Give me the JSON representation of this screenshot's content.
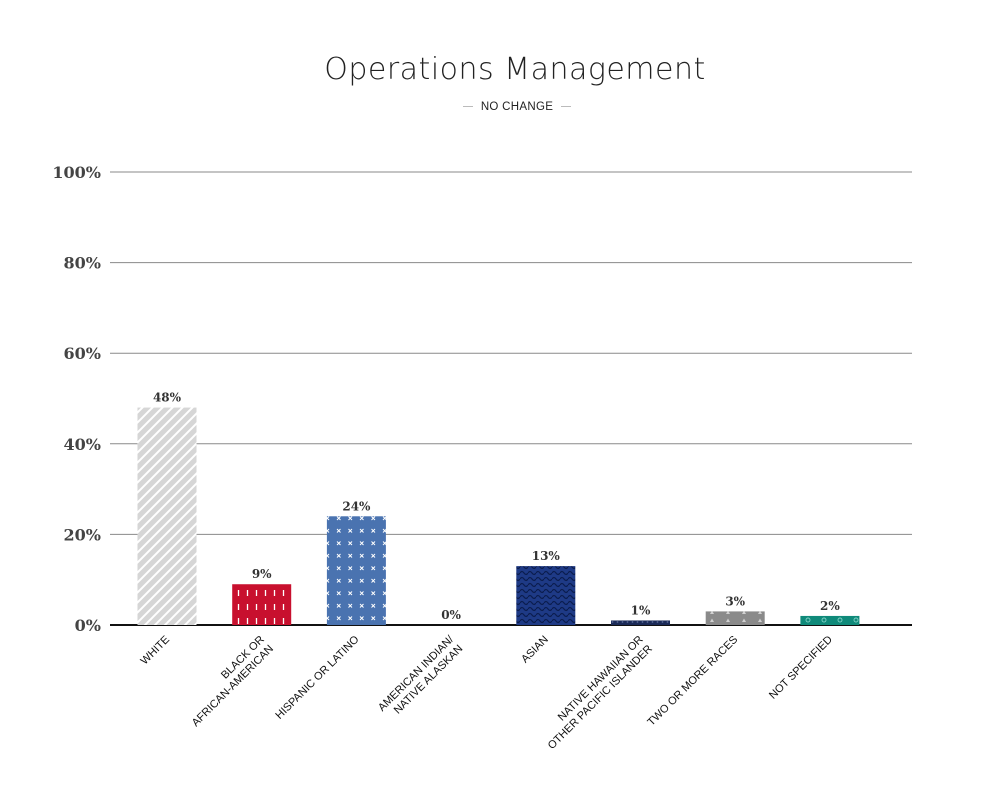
{
  "chart_data": {
    "type": "bar",
    "title": "Operations Management",
    "subtitle": "NO CHANGE",
    "categories": [
      [
        "WHITE"
      ],
      [
        "BLACK OR",
        "AFRICAN-AMERICAN"
      ],
      [
        "HISPANIC OR LATINO"
      ],
      [
        "AMERICAN INDIAN/",
        "NATIVE ALASKAN"
      ],
      [
        "ASIAN"
      ],
      [
        "NATIVE HAWAIIAN OR",
        "OTHER PACIFIC ISLANDER"
      ],
      [
        "TWO OR MORE RACES"
      ],
      [
        "NOT SPECIFIED"
      ]
    ],
    "values": [
      48,
      9,
      24,
      0,
      13,
      1,
      3,
      2
    ],
    "value_labels": [
      "48%",
      "9%",
      "24%",
      "0%",
      "13%",
      "1%",
      "3%",
      "2%"
    ],
    "yticks": [
      0,
      20,
      40,
      60,
      80,
      100
    ],
    "ytick_labels": [
      "0%",
      "20%",
      "40%",
      "60%",
      "80%",
      "100%"
    ],
    "ylim": [
      0,
      100
    ],
    "grid": true,
    "colors": [
      "#d9d9d9",
      "#c8102e",
      "#4a73b0",
      "#1a2a57",
      "#1e3a86",
      "#1a2a57",
      "#8a8a8a",
      "#0f8a7a"
    ],
    "patterns": [
      "diagonal-stripes",
      "dashes",
      "x-marks",
      "none",
      "waves",
      "dots",
      "triangles",
      "circles"
    ]
  }
}
